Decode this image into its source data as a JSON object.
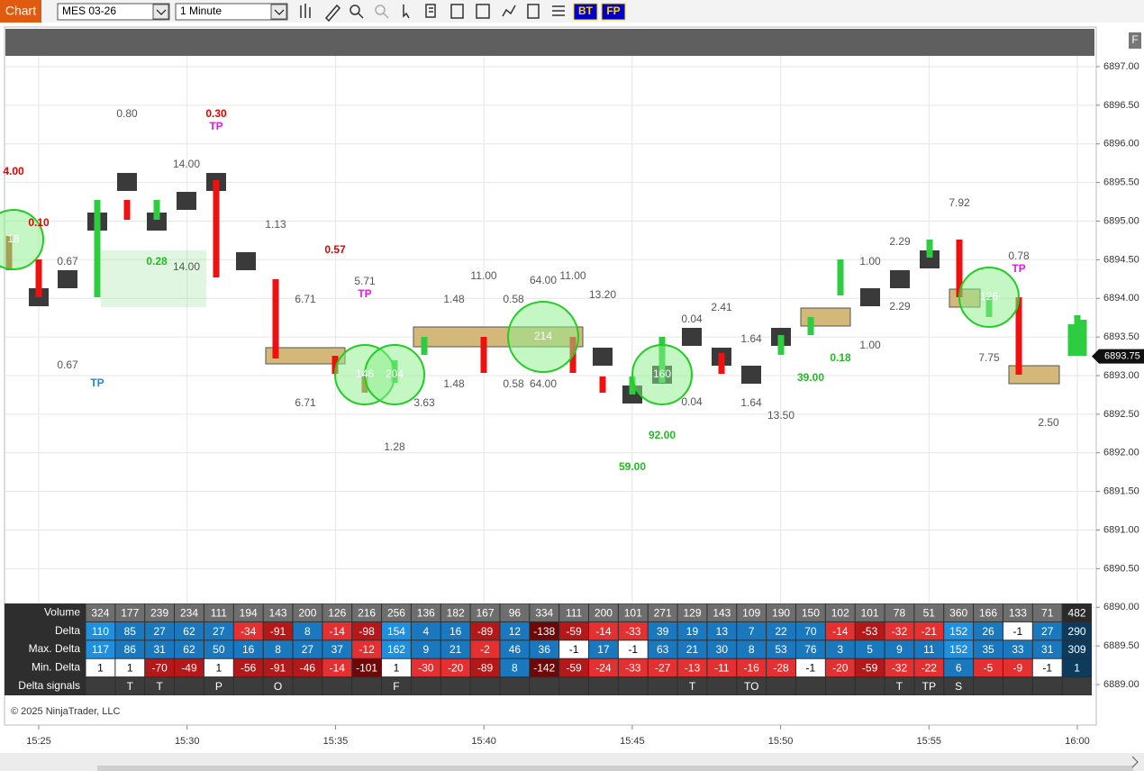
{
  "toolbar": {
    "tab": "Chart",
    "instrument": "MES 03-26",
    "interval": "1 Minute",
    "buttons": [
      "BT",
      "FP"
    ]
  },
  "panel_button": "F",
  "price_axis": {
    "labels": [
      "6897.00",
      "6896.50",
      "6896.00",
      "6895.50",
      "6895.00",
      "6894.50",
      "6894.00",
      "6893.50",
      "6893.00",
      "6892.50",
      "6892.00",
      "6891.50",
      "6891.00",
      "6890.50",
      "6890.00",
      "6889.50",
      "6889.00"
    ],
    "current_price": "6893.75"
  },
  "time_axis": {
    "labels": [
      "15:25",
      "15:30",
      "15:35",
      "15:40",
      "15:45",
      "15:50",
      "15:55",
      "16:00"
    ]
  },
  "copyright": "© 2025 NinjaTrader, LLC",
  "annotations": [
    {
      "text": "4.00",
      "color": "#e00000"
    },
    {
      "text": "0.10",
      "color": "#e00000"
    },
    {
      "text": "0.67",
      "color": "#555555"
    },
    {
      "text": "0.67",
      "color": "#555555"
    },
    {
      "text": "TP",
      "color": "#1e88e5"
    },
    {
      "text": "0.80",
      "color": "#555555"
    },
    {
      "text": "0.28",
      "color": "#22bb22"
    },
    {
      "text": "14.00",
      "color": "#555555"
    },
    {
      "text": "14.00",
      "color": "#555555"
    },
    {
      "text": "0.30",
      "color": "#e00000"
    },
    {
      "text": "TP",
      "color": "#e020e0"
    },
    {
      "text": "1.13",
      "color": "#555555"
    },
    {
      "text": "6.71",
      "color": "#555555"
    },
    {
      "text": "6.71",
      "color": "#555555"
    },
    {
      "text": "0.57",
      "color": "#e00000"
    },
    {
      "text": "5.71",
      "color": "#555555"
    },
    {
      "text": "TP",
      "color": "#e020e0"
    },
    {
      "text": "1.28",
      "color": "#555555"
    },
    {
      "text": "3.63",
      "color": "#555555"
    },
    {
      "text": "1.48",
      "color": "#555555"
    },
    {
      "text": "1.48",
      "color": "#555555"
    },
    {
      "text": "11.00",
      "color": "#555555"
    },
    {
      "text": "0.58",
      "color": "#555555"
    },
    {
      "text": "0.58",
      "color": "#555555"
    },
    {
      "text": "64.00",
      "color": "#555555"
    },
    {
      "text": "64.00",
      "color": "#555555"
    },
    {
      "text": "11.00",
      "color": "#555555"
    },
    {
      "text": "13.20",
      "color": "#555555"
    },
    {
      "text": "59.00",
      "color": "#22bb22"
    },
    {
      "text": "92.00",
      "color": "#22bb22"
    },
    {
      "text": "0.04",
      "color": "#555555"
    },
    {
      "text": "0.04",
      "color": "#555555"
    },
    {
      "text": "2.41",
      "color": "#555555"
    },
    {
      "text": "1.64",
      "color": "#555555"
    },
    {
      "text": "1.64",
      "color": "#555555"
    },
    {
      "text": "13.50",
      "color": "#555555"
    },
    {
      "text": "39.00",
      "color": "#22bb22"
    },
    {
      "text": "0.18",
      "color": "#22bb22"
    },
    {
      "text": "1.00",
      "color": "#555555"
    },
    {
      "text": "1.00",
      "color": "#555555"
    },
    {
      "text": "2.29",
      "color": "#555555"
    },
    {
      "text": "2.29",
      "color": "#555555"
    },
    {
      "text": "7.92",
      "color": "#555555"
    },
    {
      "text": "0.78",
      "color": "#555555"
    },
    {
      "text": "TP",
      "color": "#e020e0"
    },
    {
      "text": "7.75",
      "color": "#555555"
    },
    {
      "text": "2.50",
      "color": "#555555"
    }
  ],
  "circle_labels": [
    "18",
    "146",
    "204",
    "214",
    "160",
    "126"
  ],
  "table": {
    "row_labels": [
      "Volume",
      "Delta",
      "Max. Delta",
      "Min. Delta",
      "Delta signals"
    ],
    "volume": [
      324,
      177,
      239,
      234,
      111,
      194,
      143,
      200,
      126,
      216,
      256,
      136,
      182,
      167,
      96,
      334,
      111,
      200,
      101,
      271,
      129,
      143,
      109,
      190,
      150,
      102,
      101,
      78,
      51,
      360,
      166,
      133,
      71,
      482
    ],
    "delta": [
      110,
      85,
      27,
      62,
      27,
      -34,
      -91,
      8,
      -14,
      -98,
      154,
      4,
      16,
      -89,
      12,
      -138,
      -59,
      -14,
      -33,
      39,
      19,
      13,
      7,
      22,
      70,
      -14,
      -53,
      -32,
      -21,
      152,
      26,
      -1,
      27,
      290
    ],
    "max_delta": [
      117,
      86,
      31,
      62,
      50,
      16,
      8,
      27,
      37,
      -12,
      162,
      9,
      21,
      -2,
      46,
      36,
      -1,
      17,
      -1,
      63,
      21,
      30,
      8,
      53,
      76,
      3,
      5,
      9,
      11,
      152,
      35,
      33,
      31,
      309
    ],
    "min_delta": [
      1,
      1,
      -70,
      -49,
      1,
      -56,
      -91,
      -46,
      -14,
      -101,
      1,
      -30,
      -20,
      -89,
      8,
      -142,
      -59,
      -24,
      -33,
      -27,
      -13,
      -11,
      -16,
      -28,
      -1,
      -20,
      -59,
      -32,
      -22,
      6,
      -5,
      -9,
      -1,
      1
    ],
    "signals": [
      null,
      "T",
      "T",
      null,
      "P",
      null,
      "O",
      null,
      null,
      null,
      "F",
      null,
      null,
      null,
      null,
      null,
      null,
      null,
      null,
      null,
      "T",
      null,
      "TO",
      null,
      null,
      null,
      null,
      "T",
      "TP",
      "S",
      null,
      null,
      null,
      null
    ]
  }
}
